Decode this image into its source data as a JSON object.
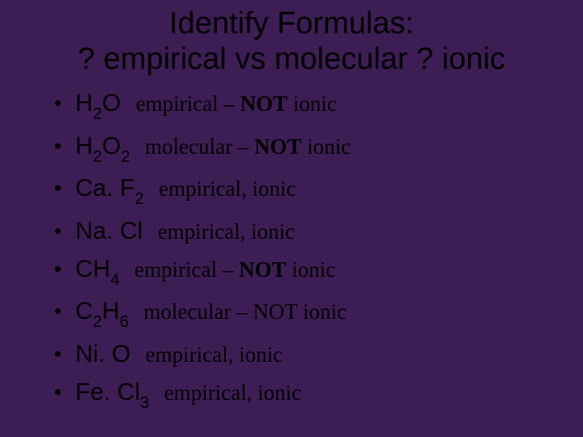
{
  "slide": {
    "background_color": "#3d1e54",
    "text_color": "#000000",
    "title_line1": "Identify Formulas:",
    "title_line2": "? empirical vs molecular ? ionic",
    "title_fontsize": 38,
    "body_fontsize": 30,
    "answer_fontsize": 27
  },
  "items": [
    {
      "formula_html": "H<sub>2</sub>O",
      "answer_html": "empirical – <b>NOT</b> ionic"
    },
    {
      "formula_html": "H<sub>2</sub>O<sub>2</sub>",
      "answer_html": "molecular – <b>NOT</b> ionic"
    },
    {
      "formula_html": "Ca. F<sub>2</sub>",
      "answer_html": "empirical, ionic"
    },
    {
      "formula_html": "Na. Cl",
      "answer_html": "empirical, ionic"
    },
    {
      "formula_html": "CH<sub>4</sub>",
      "answer_html": "empirical – <b>NOT</b> ionic"
    },
    {
      "formula_html": "C<sub>2</sub>H<sub>6</sub>",
      "answer_html": "molecular – NOT ionic"
    },
    {
      "formula_html": "Ni. O",
      "answer_html": "empirical, ionic"
    },
    {
      "formula_html": "Fe. Cl<sub>3</sub>",
      "answer_html": "empirical, ionic"
    }
  ]
}
